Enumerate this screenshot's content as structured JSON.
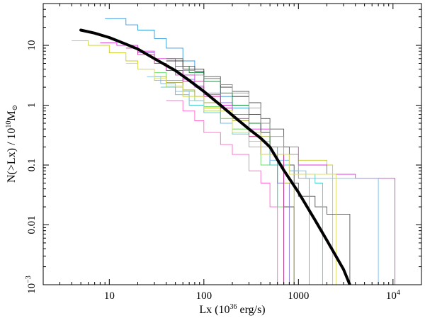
{
  "chart_data": {
    "type": "line",
    "x_scale": "log",
    "y_scale": "log",
    "xlim": [
      2.0,
      20000
    ],
    "ylim": [
      0.001,
      50
    ],
    "xlabel": {
      "main": "Lx (10",
      "sup": "36",
      "tail": " erg/s)"
    },
    "ylabel": {
      "main": "N(>Lx) / 10",
      "sup": "10",
      "tail": "M",
      "sub": "⊙"
    },
    "x_ticks": [
      {
        "value": 10,
        "label": "10",
        "sup": ""
      },
      {
        "value": 100,
        "label": "100",
        "sup": ""
      },
      {
        "value": 1000,
        "label": "1000",
        "sup": ""
      },
      {
        "value": 10000,
        "label": "10",
        "sup": "4"
      }
    ],
    "y_ticks": [
      {
        "value": 0.001,
        "label": "10",
        "sup": "−3"
      },
      {
        "value": 0.01,
        "label": "0.01",
        "sup": ""
      },
      {
        "value": 0.1,
        "label": "0.1",
        "sup": ""
      },
      {
        "value": 1,
        "label": "1",
        "sup": ""
      },
      {
        "value": 10,
        "label": "10",
        "sup": ""
      }
    ],
    "model": {
      "color": "#000000",
      "x": [
        5,
        7,
        10,
        15,
        20,
        30,
        50,
        70,
        100,
        150,
        200,
        300,
        400,
        500,
        700,
        1000,
        1500,
        2000,
        3000,
        3500
      ],
      "y": [
        18,
        16,
        13.5,
        10.5,
        8.7,
        6.0,
        3.8,
        2.6,
        1.7,
        1.0,
        0.68,
        0.4,
        0.28,
        0.2,
        0.082,
        0.035,
        0.012,
        0.0055,
        0.0018,
        0.001
      ]
    },
    "series": [
      {
        "color": "#3399dd",
        "x": [
          9,
          15,
          20,
          30,
          40,
          60,
          80,
          100,
          150,
          200,
          300,
          400,
          600
        ],
        "y": [
          28,
          22,
          18,
          13,
          9,
          5.5,
          3.5,
          2.5,
          1.4,
          0.9,
          0.5,
          0.2,
          0.02
        ]
      },
      {
        "color": "#cccc22",
        "x": [
          4,
          6,
          10,
          15,
          20,
          30,
          40,
          60,
          100,
          150,
          200,
          300,
          500,
          1000,
          2000,
          2300
        ],
        "y": [
          12,
          10,
          7.5,
          5.5,
          4,
          2.6,
          2.0,
          1.4,
          0.9,
          0.6,
          0.4,
          0.25,
          0.15,
          0.12,
          0.1,
          0.001
        ]
      },
      {
        "color": "#dd33dd",
        "x": [
          8,
          12,
          20,
          30,
          50,
          80,
          100,
          150,
          200,
          300,
          500,
          1000,
          2000,
          4000,
          10500,
          10500
        ],
        "y": [
          11,
          10,
          8,
          6,
          3.2,
          2.0,
          1.5,
          1.0,
          0.7,
          0.4,
          0.2,
          0.1,
          0.07,
          0.06,
          0.055,
          0.001
        ]
      },
      {
        "color": "#555555",
        "x": [
          40,
          60,
          80,
          100,
          150,
          200,
          300,
          400,
          500,
          700,
          800,
          900,
          1000,
          1500,
          2000,
          3500
        ],
        "y": [
          6,
          4.5,
          3.7,
          3.0,
          2.2,
          1.7,
          1.1,
          0.6,
          0.4,
          0.2,
          0.1,
          0.05,
          0.03,
          0.02,
          0.015,
          0.001
        ]
      },
      {
        "color": "#333333",
        "x": [
          40,
          60,
          100,
          150,
          200,
          300,
          400,
          500,
          700,
          900
        ],
        "y": [
          5.5,
          4,
          2.8,
          2.0,
          1.4,
          0.7,
          0.35,
          0.1,
          0.02,
          0.001
        ]
      },
      {
        "color": "#66dd66",
        "x": [
          30,
          40,
          60,
          80,
          100,
          150,
          200,
          300,
          400,
          600,
          700
        ],
        "y": [
          3.5,
          2.6,
          1.7,
          1.2,
          0.95,
          0.6,
          0.4,
          0.2,
          0.1,
          0.02,
          0.001
        ]
      },
      {
        "color": "#44cccc",
        "x": [
          35,
          50,
          70,
          100,
          150,
          200,
          300,
          500,
          800,
          1000,
          1500,
          1800
        ],
        "y": [
          2.0,
          1.5,
          1.0,
          0.75,
          0.5,
          0.33,
          0.2,
          0.1,
          0.08,
          0.07,
          0.05,
          0.001
        ]
      },
      {
        "color": "#ff66cc",
        "x": [
          40,
          60,
          80,
          100,
          150,
          200,
          300,
          400,
          500,
          600
        ],
        "y": [
          1.2,
          0.8,
          0.55,
          0.35,
          0.22,
          0.15,
          0.08,
          0.05,
          0.02,
          0.001
        ]
      },
      {
        "color": "#8877dd",
        "x": [
          20,
          30,
          40,
          60,
          80,
          100,
          150,
          200,
          300,
          400,
          600,
          800
        ],
        "y": [
          7.5,
          5,
          3.8,
          2.7,
          2.1,
          1.6,
          1.1,
          0.7,
          0.35,
          0.15,
          0.05,
          0.001
        ]
      },
      {
        "color": "#aaaa44",
        "x": [
          30,
          40,
          60,
          80,
          100,
          150,
          200,
          300,
          500,
          700,
          900
        ],
        "y": [
          3,
          2.4,
          1.8,
          1.4,
          1.1,
          0.8,
          0.55,
          0.3,
          0.15,
          0.05,
          0.001
        ]
      },
      {
        "color": "#118833",
        "x": [
          50,
          70,
          100,
          150,
          200,
          300,
          500,
          700
        ],
        "y": [
          4.5,
          3.5,
          2.5,
          1.6,
          1.0,
          0.5,
          0.15,
          0.001
        ]
      },
      {
        "color": "#999999",
        "x": [
          60,
          80,
          100,
          150,
          200,
          300,
          400,
          500,
          700,
          1000,
          1300
        ],
        "y": [
          3.8,
          3.2,
          2.8,
          2.2,
          1.6,
          0.9,
          0.5,
          0.3,
          0.15,
          0.06,
          0.001
        ]
      },
      {
        "color": "#77bbee",
        "x": [
          25,
          35,
          50,
          70,
          100,
          150,
          200,
          300,
          500,
          800,
          1200,
          7000,
          7000
        ],
        "y": [
          3,
          2.3,
          1.7,
          1.2,
          0.8,
          0.5,
          0.35,
          0.2,
          0.12,
          0.08,
          0.06,
          0.05,
          0.001
        ]
      },
      {
        "color": "#cc3399",
        "x": [
          15,
          20,
          30,
          40,
          60,
          100,
          150,
          200,
          300,
          400,
          700
        ],
        "y": [
          9,
          7,
          5,
          3.8,
          2.5,
          1.4,
          0.9,
          0.6,
          0.3,
          0.15,
          0.001
        ]
      },
      {
        "color": "#dddd66",
        "x": [
          15,
          20,
          30,
          40,
          60,
          100,
          200,
          400,
          800,
          2500,
          2500
        ],
        "y": [
          5,
          4,
          2.8,
          2.1,
          1.4,
          0.8,
          0.35,
          0.15,
          0.07,
          0.045,
          0.001
        ]
      }
    ]
  }
}
